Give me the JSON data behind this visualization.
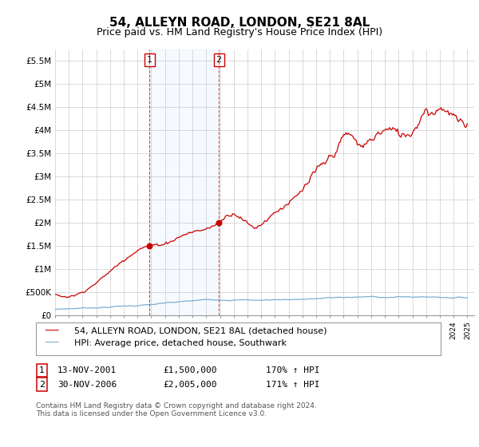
{
  "title": "54, ALLEYN ROAD, LONDON, SE21 8AL",
  "subtitle": "Price paid vs. HM Land Registry's House Price Index (HPI)",
  "title_fontsize": 11,
  "subtitle_fontsize": 9,
  "ylabel_ticks": [
    "£0",
    "£500K",
    "£1M",
    "£1.5M",
    "£2M",
    "£2.5M",
    "£3M",
    "£3.5M",
    "£4M",
    "£4.5M",
    "£5M",
    "£5.5M"
  ],
  "ytick_values": [
    0,
    500000,
    1000000,
    1500000,
    2000000,
    2500000,
    3000000,
    3500000,
    4000000,
    4500000,
    5000000,
    5500000
  ],
  "ylim": [
    0,
    5750000
  ],
  "xlim_start": 1995.0,
  "xlim_end": 2025.5,
  "red_color": "#cc0000",
  "blue_color": "#7aafd4",
  "purchase1_x": 2001.87,
  "purchase1_y": 1500000,
  "purchase2_x": 2006.92,
  "purchase2_y": 2005000,
  "legend_line1": "54, ALLEYN ROAD, LONDON, SE21 8AL (detached house)",
  "legend_line2": "HPI: Average price, detached house, Southwark",
  "table_row1": [
    "1",
    "13-NOV-2001",
    "£1,500,000",
    "170% ↑ HPI"
  ],
  "table_row2": [
    "2",
    "30-NOV-2006",
    "£2,005,000",
    "171% ↑ HPI"
  ],
  "footnote": "Contains HM Land Registry data © Crown copyright and database right 2024.\nThis data is licensed under the Open Government Licence v3.0.",
  "bg_color": "#ffffff",
  "grid_color": "#cccccc"
}
